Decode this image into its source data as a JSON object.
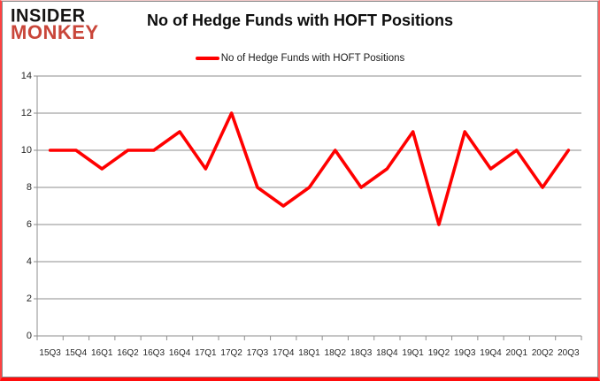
{
  "logo": {
    "line1": "INSIDER",
    "line2": "MONKEY"
  },
  "header": {
    "title": "No of Hedge Funds with HOFT Positions"
  },
  "legend": {
    "label": "No of Hedge Funds with HOFT Positions"
  },
  "colors": {
    "series_line": "#ff0000",
    "logo_accent": "#c9463a",
    "gridline": "#8e8e8e",
    "axis_line": "#8e8e8e",
    "axis_text": "#262626",
    "frame_border": "#8c8c8c",
    "frame_glow": "#ff0d0d"
  },
  "chart_data": {
    "type": "line",
    "title": "No of Hedge Funds with HOFT Positions",
    "categories": [
      "15Q3",
      "15Q4",
      "16Q1",
      "16Q2",
      "16Q3",
      "16Q4",
      "17Q1",
      "17Q2",
      "17Q3",
      "17Q4",
      "18Q1",
      "18Q2",
      "18Q3",
      "18Q4",
      "19Q1",
      "19Q2",
      "19Q3",
      "19Q4",
      "20Q1",
      "20Q2",
      "20Q3"
    ],
    "series": [
      {
        "name": "No of Hedge Funds with HOFT Positions",
        "color": "#ff0000",
        "values": [
          10,
          10,
          9,
          10,
          10,
          11,
          9,
          12,
          8,
          7,
          8,
          10,
          8,
          9,
          11,
          6,
          11,
          9,
          10,
          8,
          10
        ]
      }
    ],
    "xlabel": "",
    "ylabel": "",
    "ylim": [
      0,
      14
    ],
    "ytick_step": 2,
    "grid": true,
    "legend_position": "top-center"
  }
}
